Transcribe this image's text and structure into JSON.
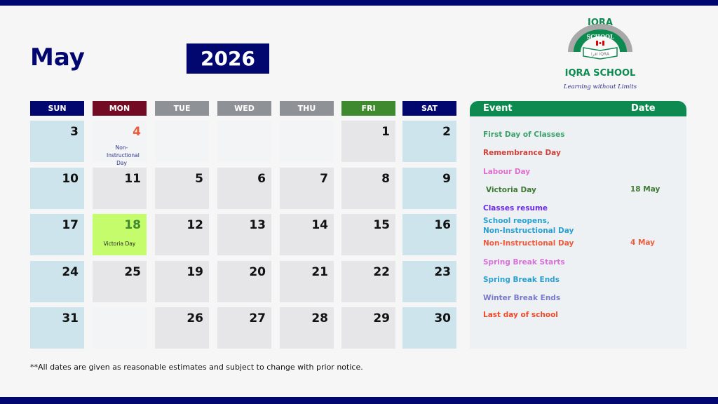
{
  "header": {
    "month": "May",
    "year": "2026"
  },
  "logo": {
    "top_text": "IQRA",
    "arc_text": "SCHOOL",
    "name": "IQRA SCHOOL",
    "tagline": "Learning without Limits"
  },
  "colors": {
    "navy": "#02066f",
    "green": "#0c8a4f",
    "weekend": "#cde4ec",
    "weekday": "#e6e6e8",
    "empty": "#f3f4f6",
    "highlight": "#c4fc6c"
  },
  "weekdays": [
    {
      "label": "SUN",
      "color": "#02066f"
    },
    {
      "label": "MON",
      "color": "#740b25"
    },
    {
      "label": "TUE",
      "color": "#8e9196"
    },
    {
      "label": "WED",
      "color": "#8e9196"
    },
    {
      "label": "THU",
      "color": "#8e9196"
    },
    {
      "label": "FRI",
      "color": "#3f8a2e"
    },
    {
      "label": "SAT",
      "color": "#02066f"
    }
  ],
  "weeks": [
    [
      {
        "day": "3",
        "type": "weekend"
      },
      {
        "day": "4",
        "type": "empty",
        "num_color": "#ee5a3c",
        "note": "Non-Instructional Day",
        "note_color": "#2b2f8a"
      },
      {
        "day": "",
        "type": "empty"
      },
      {
        "day": "",
        "type": "empty"
      },
      {
        "day": "",
        "type": "empty"
      },
      {
        "day": "1",
        "type": "weekday"
      },
      {
        "day": "2",
        "type": "weekend"
      }
    ],
    [
      {
        "day": "10",
        "type": "weekend"
      },
      {
        "day": "11",
        "type": "weekday"
      },
      {
        "day": "5",
        "type": "weekday"
      },
      {
        "day": "6",
        "type": "weekday"
      },
      {
        "day": "7",
        "type": "weekday"
      },
      {
        "day": "8",
        "type": "weekday"
      },
      {
        "day": "9",
        "type": "weekend"
      }
    ],
    [
      {
        "day": "17",
        "type": "weekend"
      },
      {
        "day": "18",
        "type": "highlight",
        "num_color": "#3f8a2e",
        "note": "Victoria Day",
        "note_color": "#222"
      },
      {
        "day": "12",
        "type": "weekday"
      },
      {
        "day": "13",
        "type": "weekday"
      },
      {
        "day": "14",
        "type": "weekday"
      },
      {
        "day": "15",
        "type": "weekday"
      },
      {
        "day": "16",
        "type": "weekend"
      }
    ],
    [
      {
        "day": "24",
        "type": "weekend"
      },
      {
        "day": "25",
        "type": "weekday"
      },
      {
        "day": "19",
        "type": "weekday"
      },
      {
        "day": "20",
        "type": "weekday"
      },
      {
        "day": "21",
        "type": "weekday"
      },
      {
        "day": "22",
        "type": "weekday"
      },
      {
        "day": "23",
        "type": "weekend"
      }
    ],
    [
      {
        "day": "31",
        "type": "weekend"
      },
      {
        "day": "",
        "type": "empty"
      },
      {
        "day": "26",
        "type": "weekday"
      },
      {
        "day": "27",
        "type": "weekday"
      },
      {
        "day": "28",
        "type": "weekday"
      },
      {
        "day": "29",
        "type": "weekday"
      },
      {
        "day": "30",
        "type": "weekend"
      }
    ]
  ],
  "events_panel": {
    "event_header": "Event",
    "date_header": "Date",
    "events": [
      {
        "name": "First Day of Classes",
        "date": "",
        "color": "#3aa36a"
      },
      {
        "name": "Remembrance Day",
        "date": "",
        "color": "#d0413a"
      },
      {
        "name": "Labour Day",
        "date": "",
        "color": "#e070d0"
      },
      {
        "name": "Victoria Day",
        "date": "18 May",
        "color": "#3f7a35"
      },
      {
        "name": "Classes resume",
        "date": "",
        "color": "#6a2ae0"
      },
      {
        "name": "School reopens,\nNon-Instructional Day",
        "date": "",
        "color": "#2aa0d0"
      },
      {
        "name": "Non-Instructional Day",
        "date": "4 May",
        "color": "#ee5a3c"
      },
      {
        "name": "Spring Break Starts",
        "date": "",
        "color": "#d870d8"
      },
      {
        "name": "Spring Break Ends",
        "date": "",
        "color": "#2aa0d0"
      },
      {
        "name": "Winter Break Ends",
        "date": "",
        "color": "#7a78c8"
      },
      {
        "name": "Last day of school",
        "date": "",
        "color": "#ee4a2a"
      }
    ]
  },
  "footnote": "**All dates are given as reasonable estimates and subject to change with prior notice."
}
